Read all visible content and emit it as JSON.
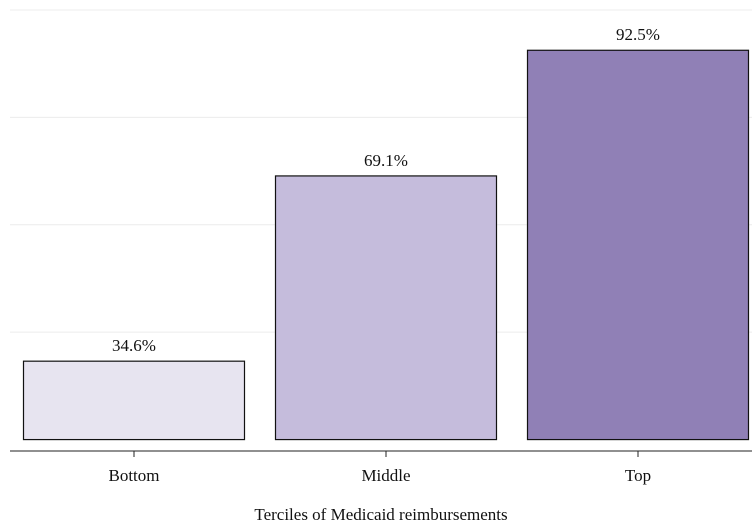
{
  "chart_data": {
    "type": "bar",
    "x_label": "Terciles of Medicaid reimbursements",
    "categories": [
      "Bottom",
      "Middle",
      "Top"
    ],
    "values": [
      34.6,
      69.1,
      92.5
    ],
    "value_labels": [
      "34.6%",
      "69.1%",
      "92.5%"
    ],
    "colors": [
      "#e7e4f0",
      "#c5bcdc",
      "#9080b6"
    ],
    "bar_base": 20,
    "ylim": [
      17.5,
      100
    ],
    "yticks": [
      40,
      60,
      80,
      100
    ],
    "grid": true
  }
}
